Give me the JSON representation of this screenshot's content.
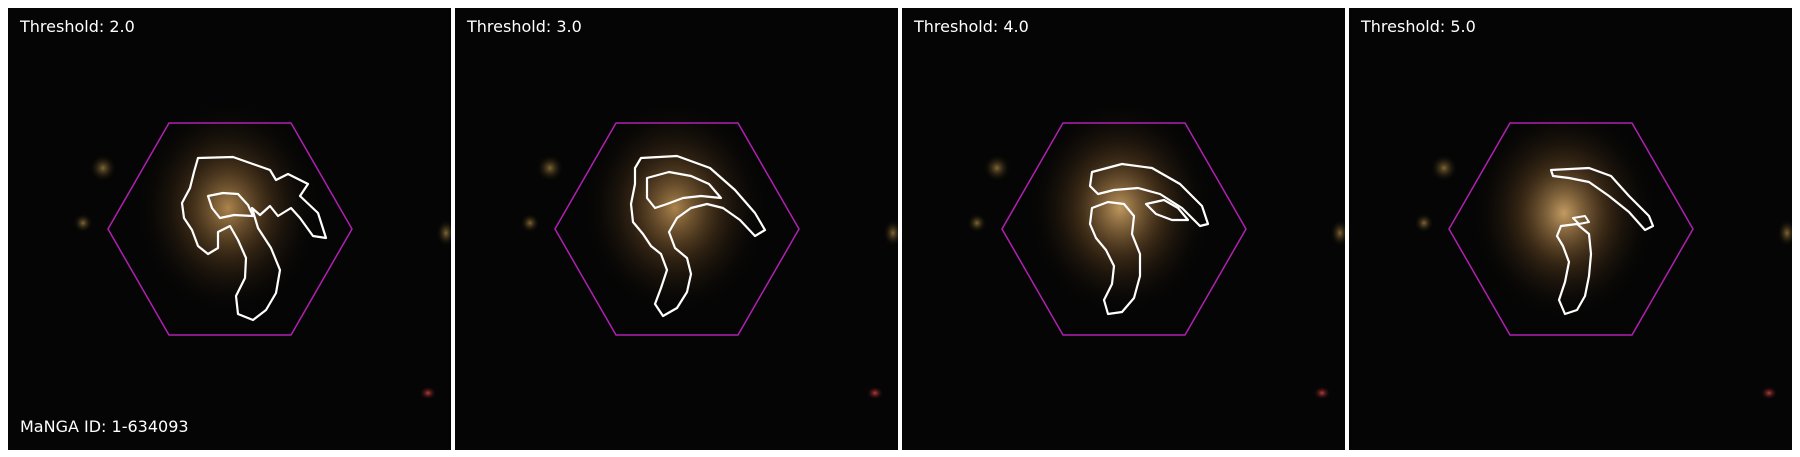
{
  "figure": {
    "manga_label": "MaNGA ID: 1-634093",
    "hexagon_color": "#b020b0",
    "contour_color": "#ffffff",
    "panels": [
      {
        "threshold_label": "Threshold: 2.0"
      },
      {
        "threshold_label": "Threshold: 3.0"
      },
      {
        "threshold_label": "Threshold: 4.0"
      },
      {
        "threshold_label": "Threshold: 5.0"
      }
    ]
  }
}
